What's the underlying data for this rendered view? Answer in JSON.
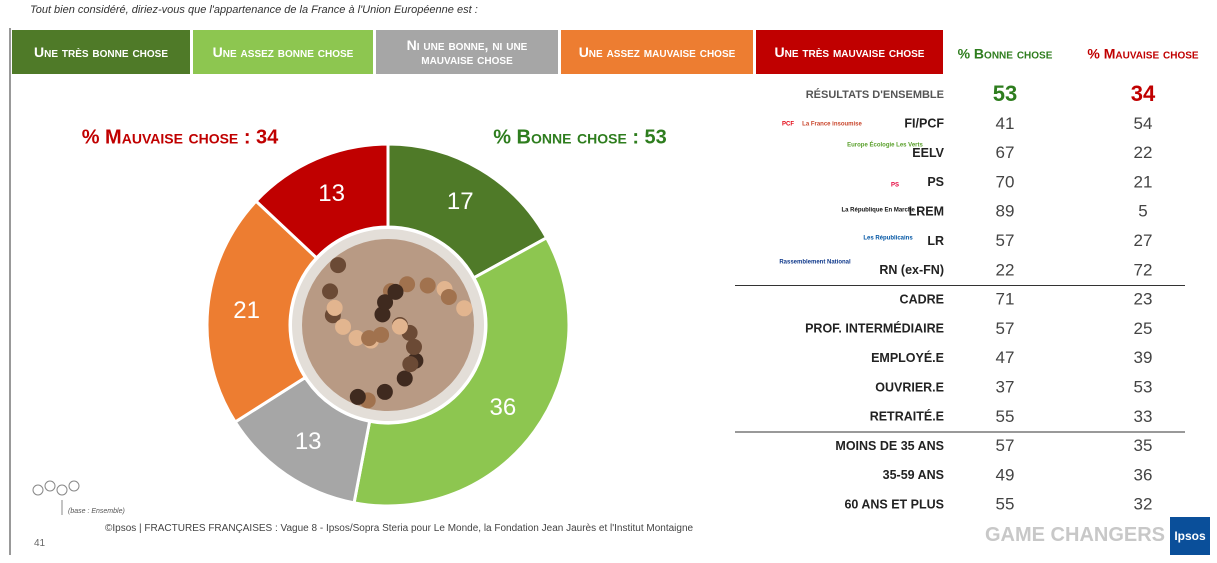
{
  "question": "Tout bien considéré, diriez-vous que l'appartenance de la France à l'Union Européenne est :",
  "chart_data": {
    "type": "donut",
    "categories": [
      "Une très bonne chose",
      "Une assez bonne chose",
      "Ni une bonne, ni une mauvaise chose",
      "Une assez mauvaise chose",
      "Une très mauvaise chose"
    ],
    "values": [
      17,
      36,
      13,
      21,
      13
    ],
    "colors": [
      "#4f7a28",
      "#8dc650",
      "#a6a6a6",
      "#ed7d31",
      "#c00000"
    ],
    "annotations": [
      {
        "text": "% Mauvaise chose : 34",
        "color": "#c00000"
      },
      {
        "text": "% Bonne chose : 53",
        "color": "#2e7d1e"
      }
    ]
  },
  "table": {
    "columns": [
      {
        "text": "% Bonne chose",
        "color": "#2e7d1e"
      },
      {
        "text": "% Mauvaise chose",
        "color": "#c00000"
      }
    ],
    "groups": [
      [
        {
          "label": "RÉSULTATS D'ENSEMBLE",
          "values": [
            53,
            34
          ]
        },
        {
          "label": "FI/PCF",
          "values": [
            41,
            54
          ]
        },
        {
          "label": "EELV",
          "values": [
            67,
            22
          ]
        },
        {
          "label": "PS",
          "values": [
            70,
            21
          ]
        },
        {
          "label": "LREM",
          "values": [
            89,
            5
          ]
        },
        {
          "label": "LR",
          "values": [
            57,
            27
          ]
        },
        {
          "label": "RN (ex-FN)",
          "values": [
            22,
            72
          ]
        }
      ],
      [
        {
          "label": "CADRE",
          "values": [
            71,
            23
          ]
        },
        {
          "label": "PROF. INTERMÉDIAIRE",
          "values": [
            57,
            25
          ]
        },
        {
          "label": "EMPLOYÉ.E",
          "values": [
            47,
            39
          ]
        },
        {
          "label": "OUVRIER.E",
          "values": [
            37,
            53
          ]
        },
        {
          "label": "RETRAITÉ.E",
          "values": [
            55,
            33
          ]
        }
      ],
      [
        {
          "label": "MOINS DE 35 ANS",
          "values": [
            57,
            35
          ]
        },
        {
          "label": "35-59 ANS",
          "values": [
            49,
            36
          ]
        },
        {
          "label": "60 ANS ET PLUS",
          "values": [
            55,
            32
          ]
        }
      ]
    ]
  },
  "logos": [
    "PCF",
    "La France insoumise",
    "Europe Écologie Les Verts",
    "PS",
    "La République En Marche !",
    "Les Républicains",
    "Rassemblement National"
  ],
  "footer": {
    "base": "(base : Ensemble)",
    "source": "©Ipsos | FRACTURES FRANÇAISES : Vague 8 - Ipsos/Sopra Steria pour Le Monde, la Fondation Jean Jaurès et l'Institut Montaigne",
    "page": "41",
    "tagline": "GAME CHANGERS",
    "brand": "Ipsos"
  }
}
